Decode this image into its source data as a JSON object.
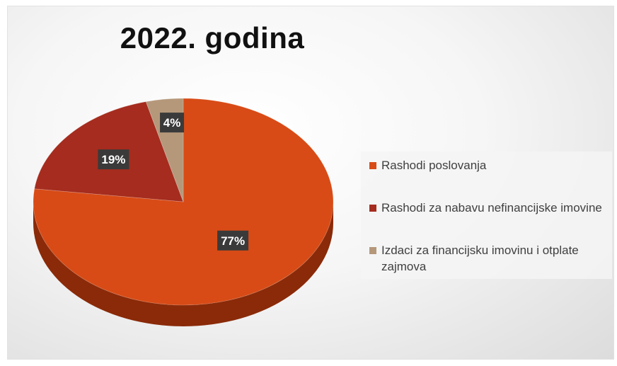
{
  "chart_data": {
    "type": "pie",
    "title": "2022. godina",
    "slices": [
      {
        "label": "Rashodi poslovanja",
        "value": 77,
        "data_label": "77%",
        "color": "#D84B16",
        "side_color": "#8A2A08"
      },
      {
        "label": "Rashodi za nabavu nefinancijske imovine",
        "value": 19,
        "data_label": "19%",
        "color": "#A52C1E",
        "side_color": "#6A1A10"
      },
      {
        "label": "Izdaci za financijsku imovinu i otplate zajmova",
        "value": 4,
        "data_label": "4%",
        "color": "#B5987A",
        "side_color": "#7E6650"
      }
    ],
    "legend_position": "right"
  }
}
